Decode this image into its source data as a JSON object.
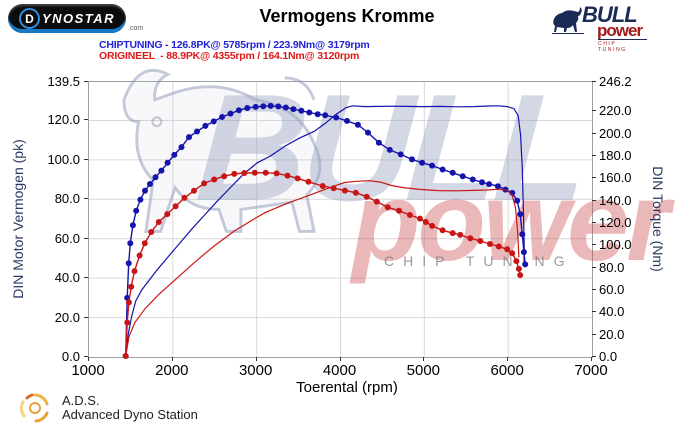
{
  "header": {
    "dynostar_logo": {
      "initial": "D",
      "rest": "YNOSTAR",
      "suffix": ".com"
    },
    "title": "Vermogens Kromme",
    "legend": [
      {
        "text": "CHIPTUNING - 126.8PK@ 5785rpm / 223.9Nm@ 3179rpm",
        "color": "#2121d6"
      },
      {
        "text": "ORIGINEEL  - 88.9PK@ 4355rpm / 164.1Nm@ 3120rpm",
        "color": "#e01818"
      }
    ],
    "bullpower_logo": {
      "line1": "BULL",
      "line2": "power",
      "line3": "CHIP TUNING"
    }
  },
  "watermark": {
    "big_text": "BULL",
    "sub_text": "power",
    "tagline": "CHIP TUNING"
  },
  "footer": {
    "ads_abbr": "A.D.S.",
    "ads_name": "Advanced Dyno Station"
  },
  "chart_data": {
    "type": "line",
    "title": "Vermogens Kromme",
    "xlabel": "Toerental (rpm)",
    "ylabel_left": "DIN Motor Vermogen (pk)",
    "ylabel_right": "DIN Torque (Nm)",
    "xlim": [
      1000,
      7000
    ],
    "ylim_left": [
      0,
      139.5
    ],
    "ylim_right": [
      0,
      246.2
    ],
    "x_ticks": [
      1000,
      2000,
      3000,
      4000,
      5000,
      6000,
      7000
    ],
    "y_left_ticks": [
      139.5,
      120.0,
      100.0,
      80.0,
      60.0,
      40.0,
      20.0,
      0.0
    ],
    "y_right_ticks": [
      246.2,
      220.0,
      200.0,
      180.0,
      160.0,
      140.0,
      120.0,
      100.0,
      80.0,
      60.0,
      40.0,
      20.0,
      0.0
    ],
    "grid": true,
    "colors": {
      "chiptuning": "#1414ad",
      "origineel": "#c81616",
      "grid": "#d9d9d9"
    },
    "series": [
      {
        "name": "CHIPTUNING vermogen (pk)",
        "axis": "left",
        "color": "#1414ad",
        "markers": false,
        "points": [
          [
            1450,
            0
          ],
          [
            1480,
            11
          ],
          [
            1520,
            20
          ],
          [
            1570,
            28
          ],
          [
            1640,
            33.5
          ],
          [
            1730,
            38.5
          ],
          [
            1840,
            44.5
          ],
          [
            1960,
            50.5
          ],
          [
            2090,
            57
          ],
          [
            2230,
            64
          ],
          [
            2380,
            71
          ],
          [
            2540,
            78.5
          ],
          [
            2700,
            85.5
          ],
          [
            2860,
            92.5
          ],
          [
            3020,
            98
          ],
          [
            3179,
            101.5
          ],
          [
            3350,
            106.5
          ],
          [
            3520,
            110.5
          ],
          [
            3700,
            114
          ],
          [
            3830,
            118
          ],
          [
            3950,
            122.3
          ],
          [
            4080,
            126
          ],
          [
            4160,
            126.9
          ],
          [
            4300,
            126.5
          ],
          [
            4450,
            126.6
          ],
          [
            4600,
            126.7
          ],
          [
            4800,
            126.6
          ],
          [
            5000,
            126.5
          ],
          [
            5200,
            126.6
          ],
          [
            5400,
            126.4
          ],
          [
            5600,
            126.5
          ],
          [
            5785,
            126.8
          ],
          [
            5900,
            126.9
          ],
          [
            6000,
            126.5
          ],
          [
            6080,
            125.5
          ],
          [
            6130,
            122
          ],
          [
            6160,
            112
          ],
          [
            6180,
            95
          ],
          [
            6195,
            72
          ],
          [
            6208,
            47
          ]
        ]
      },
      {
        "name": "CHIPTUNING koppel (Nm)",
        "axis": "right",
        "color": "#1414ad",
        "markers": true,
        "points": [
          [
            1450,
            0
          ],
          [
            1468,
            52
          ],
          [
            1485,
            83
          ],
          [
            1505,
            101
          ],
          [
            1535,
            117
          ],
          [
            1575,
            130
          ],
          [
            1625,
            140
          ],
          [
            1680,
            148
          ],
          [
            1740,
            154
          ],
          [
            1805,
            160
          ],
          [
            1875,
            166
          ],
          [
            1950,
            173
          ],
          [
            2030,
            180
          ],
          [
            2115,
            187
          ],
          [
            2205,
            196
          ],
          [
            2300,
            201
          ],
          [
            2400,
            206
          ],
          [
            2500,
            210
          ],
          [
            2600,
            214
          ],
          [
            2700,
            217
          ],
          [
            2800,
            220
          ],
          [
            2900,
            222
          ],
          [
            3000,
            223
          ],
          [
            3090,
            223.6
          ],
          [
            3179,
            223.9
          ],
          [
            3270,
            223.5
          ],
          [
            3360,
            222.5
          ],
          [
            3450,
            221
          ],
          [
            3545,
            219.5
          ],
          [
            3640,
            218
          ],
          [
            3740,
            216.5
          ],
          [
            3830,
            215.5
          ],
          [
            3960,
            213.5
          ],
          [
            4090,
            210.5
          ],
          [
            4220,
            207
          ],
          [
            4340,
            200
          ],
          [
            4470,
            191
          ],
          [
            4600,
            184.5
          ],
          [
            4730,
            180.5
          ],
          [
            4865,
            176
          ],
          [
            4985,
            173
          ],
          [
            5105,
            170.5
          ],
          [
            5230,
            167
          ],
          [
            5350,
            164
          ],
          [
            5470,
            161
          ],
          [
            5590,
            158
          ],
          [
            5700,
            155.5
          ],
          [
            5785,
            153.9
          ],
          [
            5890,
            152
          ],
          [
            5980,
            149
          ],
          [
            6060,
            146
          ],
          [
            6120,
            139
          ],
          [
            6155,
            127
          ],
          [
            6180,
            109
          ],
          [
            6200,
            93
          ],
          [
            6215,
            82
          ]
        ]
      },
      {
        "name": "ORIGINEEL vermogen (pk)",
        "axis": "left",
        "color": "#c81616",
        "markers": false,
        "points": [
          [
            1450,
            0
          ],
          [
            1490,
            10
          ],
          [
            1560,
            17
          ],
          [
            1680,
            24
          ],
          [
            1850,
            31.5
          ],
          [
            2050,
            39
          ],
          [
            2270,
            47.5
          ],
          [
            2510,
            56
          ],
          [
            2750,
            63.5
          ],
          [
            3000,
            70
          ],
          [
            3120,
            72.9
          ],
          [
            3380,
            77.5
          ],
          [
            3640,
            81.5
          ],
          [
            3820,
            84.4
          ],
          [
            4060,
            88
          ],
          [
            4200,
            88.6
          ],
          [
            4355,
            88.9
          ],
          [
            4490,
            88.2
          ],
          [
            4620,
            86.5
          ],
          [
            4760,
            85.4
          ],
          [
            4960,
            84.5
          ],
          [
            5170,
            83.9
          ],
          [
            5400,
            83.8
          ],
          [
            5600,
            84
          ],
          [
            5760,
            84.2
          ],
          [
            5900,
            84.6
          ],
          [
            6000,
            84
          ],
          [
            6060,
            81.5
          ],
          [
            6100,
            75
          ],
          [
            6125,
            63
          ],
          [
            6140,
            50
          ]
        ]
      },
      {
        "name": "ORIGINEEL koppel (Nm)",
        "axis": "right",
        "color": "#c81616",
        "markers": true,
        "points": [
          [
            1450,
            0
          ],
          [
            1468,
            30
          ],
          [
            1488,
            48
          ],
          [
            1515,
            62
          ],
          [
            1555,
            76
          ],
          [
            1615,
            90
          ],
          [
            1678,
            101
          ],
          [
            1755,
            111
          ],
          [
            1845,
            120
          ],
          [
            1945,
            127
          ],
          [
            2045,
            134
          ],
          [
            2150,
            141.5
          ],
          [
            2265,
            148
          ],
          [
            2385,
            154.5
          ],
          [
            2505,
            158
          ],
          [
            2625,
            161
          ],
          [
            2745,
            163
          ],
          [
            2865,
            163.8
          ],
          [
            2990,
            164
          ],
          [
            3120,
            164.1
          ],
          [
            3250,
            163.5
          ],
          [
            3380,
            161.5
          ],
          [
            3500,
            159
          ],
          [
            3630,
            156
          ],
          [
            3800,
            152.2
          ],
          [
            3930,
            150.2
          ],
          [
            4065,
            148.1
          ],
          [
            4195,
            146.2
          ],
          [
            4325,
            142.6
          ],
          [
            4445,
            138.2
          ],
          [
            4575,
            133.1
          ],
          [
            4710,
            130.1
          ],
          [
            4840,
            126.2
          ],
          [
            4960,
            123
          ],
          [
            5030,
            120
          ],
          [
            5105,
            116.5
          ],
          [
            5230,
            112.5
          ],
          [
            5350,
            110
          ],
          [
            5440,
            108.4
          ],
          [
            5560,
            105.5
          ],
          [
            5680,
            103
          ],
          [
            5795,
            100.3
          ],
          [
            5900,
            98
          ],
          [
            6000,
            95.5
          ],
          [
            6060,
            92
          ],
          [
            6110,
            85
          ],
          [
            6140,
            78
          ],
          [
            6155,
            72.4
          ]
        ]
      }
    ]
  }
}
